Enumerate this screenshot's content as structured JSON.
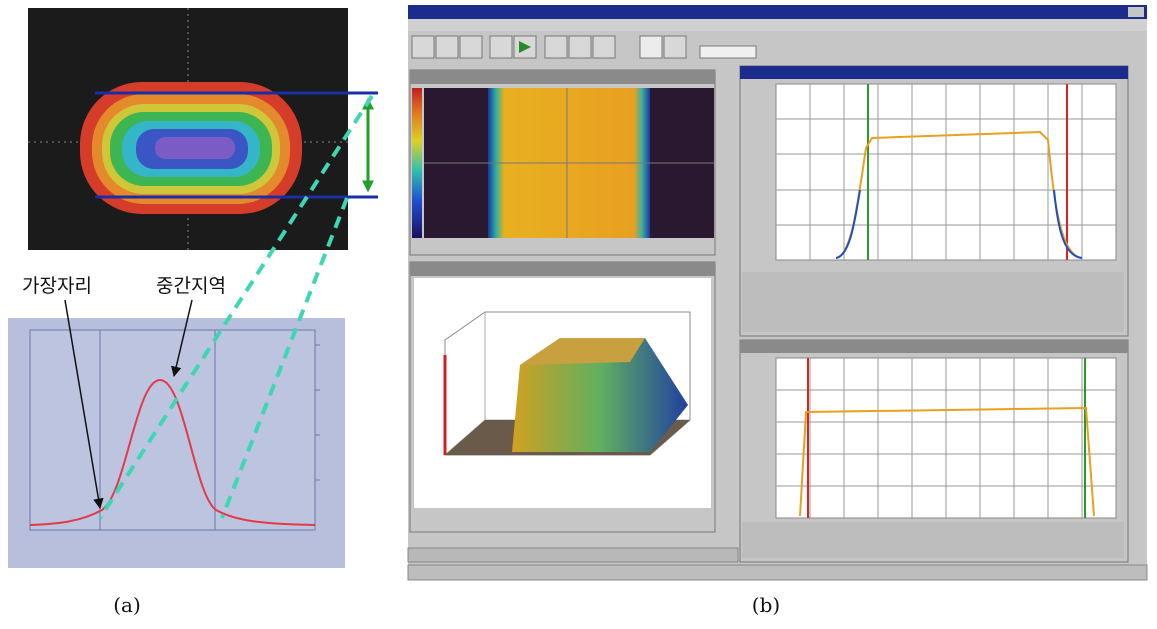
{
  "labels": {
    "edge": "가장자리",
    "center": "중간지역"
  },
  "captions": {
    "a": "(a)",
    "b": "(b)"
  }
}
